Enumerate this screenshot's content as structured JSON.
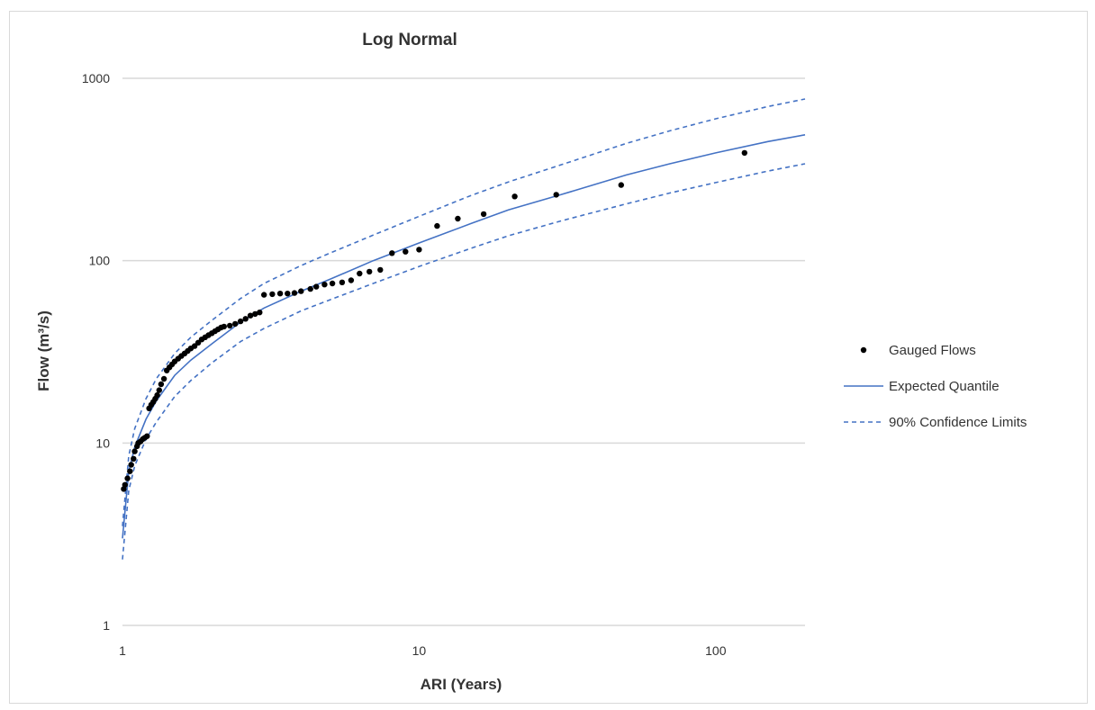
{
  "chart_data": {
    "type": "scatter",
    "title": "Log Normal",
    "xlabel": "ARI (Years)",
    "ylabel": "Flow (m³/s)",
    "xscale": "log",
    "yscale": "log",
    "xlim": [
      1,
      200
    ],
    "ylim": [
      1,
      1000
    ],
    "xticks": [
      "1",
      "10",
      "100"
    ],
    "yticks": [
      "1",
      "10",
      "100",
      "1000"
    ],
    "grid": "horizontal",
    "legend_position": "right",
    "colors": {
      "points": "#000000",
      "expected": "#4472c4",
      "confidence": "#4472c4",
      "grid": "#d9d9d9"
    },
    "series": [
      {
        "name": "Gauged Flows",
        "kind": "points",
        "points": [
          [
            1.01,
            5.6
          ],
          [
            1.02,
            5.9
          ],
          [
            1.04,
            6.4
          ],
          [
            1.06,
            7.0
          ],
          [
            1.07,
            7.6
          ],
          [
            1.09,
            8.2
          ],
          [
            1.1,
            9.0
          ],
          [
            1.12,
            9.6
          ],
          [
            1.13,
            10.0
          ],
          [
            1.15,
            10.2
          ],
          [
            1.17,
            10.5
          ],
          [
            1.19,
            10.7
          ],
          [
            1.21,
            10.9
          ],
          [
            1.23,
            15.5
          ],
          [
            1.25,
            16.2
          ],
          [
            1.27,
            16.8
          ],
          [
            1.29,
            17.5
          ],
          [
            1.31,
            18.3
          ],
          [
            1.33,
            19.5
          ],
          [
            1.35,
            21.0
          ],
          [
            1.38,
            22.5
          ],
          [
            1.41,
            25.0
          ],
          [
            1.44,
            26.0
          ],
          [
            1.47,
            27.0
          ],
          [
            1.5,
            28.0
          ],
          [
            1.54,
            29.0
          ],
          [
            1.58,
            30.0
          ],
          [
            1.62,
            31.0
          ],
          [
            1.66,
            32.0
          ],
          [
            1.7,
            33.0
          ],
          [
            1.75,
            34.0
          ],
          [
            1.8,
            35.5
          ],
          [
            1.85,
            37.0
          ],
          [
            1.9,
            38.0
          ],
          [
            1.95,
            39.0
          ],
          [
            2.0,
            40.0
          ],
          [
            2.05,
            41.0
          ],
          [
            2.1,
            42.0
          ],
          [
            2.15,
            43.0
          ],
          [
            2.2,
            43.5
          ],
          [
            2.3,
            44.0
          ],
          [
            2.4,
            45.0
          ],
          [
            2.5,
            46.5
          ],
          [
            2.6,
            48.0
          ],
          [
            2.7,
            50.0
          ],
          [
            2.8,
            51.0
          ],
          [
            2.9,
            52.0
          ],
          [
            3.0,
            65.0
          ],
          [
            3.2,
            65.5
          ],
          [
            3.4,
            66.0
          ],
          [
            3.6,
            66.0
          ],
          [
            3.8,
            66.5
          ],
          [
            4.0,
            68.0
          ],
          [
            4.3,
            70.0
          ],
          [
            4.5,
            72.0
          ],
          [
            4.8,
            74.0
          ],
          [
            5.1,
            75.0
          ],
          [
            5.5,
            76.0
          ],
          [
            5.9,
            78.0
          ],
          [
            6.3,
            85.0
          ],
          [
            6.8,
            87.0
          ],
          [
            7.4,
            89.0
          ],
          [
            8.1,
            110.0
          ],
          [
            9.0,
            112.0
          ],
          [
            10.0,
            115.0
          ],
          [
            11.5,
            155.0
          ],
          [
            13.5,
            170.0
          ],
          [
            16.5,
            180.0
          ],
          [
            21.0,
            225.0
          ],
          [
            29.0,
            230.0
          ],
          [
            48.0,
            260.0
          ],
          [
            125.0,
            390.0
          ]
        ]
      },
      {
        "name": "Expected Quantile",
        "kind": "line",
        "x": [
          1.0,
          1.05,
          1.1,
          1.2,
          1.3,
          1.5,
          1.7,
          2.0,
          2.5,
          3.0,
          4.0,
          5.0,
          7.0,
          10.0,
          15.0,
          20.0,
          30.0,
          50.0,
          70.0,
          100.0,
          150.0,
          200.0
        ],
        "y": [
          3.0,
          7.0,
          9.5,
          13.5,
          17.0,
          23.5,
          28.5,
          35.0,
          46.0,
          55.0,
          68.0,
          79.0,
          100.0,
          125.0,
          160.0,
          190.0,
          230.0,
          295.0,
          340.0,
          390.0,
          450.0,
          490.0
        ]
      },
      {
        "name": "90% Confidence Limits",
        "kind": "dashed",
        "x": [
          1.0,
          1.05,
          1.1,
          1.2,
          1.3,
          1.5,
          1.7,
          2.0,
          2.5,
          3.0,
          4.0,
          5.0,
          7.0,
          10.0,
          15.0,
          20.0,
          30.0,
          50.0,
          70.0,
          100.0,
          150.0,
          200.0
        ],
        "y": [
          3.5,
          8.5,
          12.0,
          17.5,
          22.5,
          31.0,
          38.0,
          47.0,
          62.0,
          75.0,
          94.0,
          110.0,
          138.0,
          175.0,
          228.0,
          270.0,
          335.0,
          440.0,
          515.0,
          600.0,
          700.0,
          770.0
        ]
      },
      {
        "name": "90% Confidence Limits (lower)",
        "kind": "dashed",
        "x": [
          1.0,
          1.05,
          1.1,
          1.2,
          1.3,
          1.5,
          1.7,
          2.0,
          2.5,
          3.0,
          4.0,
          5.0,
          7.0,
          10.0,
          15.0,
          20.0,
          30.0,
          50.0,
          70.0,
          100.0,
          150.0,
          200.0
        ],
        "y": [
          2.3,
          5.5,
          7.5,
          10.5,
          13.0,
          18.0,
          22.0,
          27.5,
          36.0,
          42.5,
          53.0,
          61.0,
          75.0,
          93.0,
          117.0,
          137.0,
          165.0,
          205.0,
          235.0,
          268.0,
          310.0,
          340.0
        ]
      }
    ],
    "legend": [
      {
        "label": "Gauged Flows",
        "kind": "points"
      },
      {
        "label": "Expected Quantile",
        "kind": "line"
      },
      {
        "label": "90% Confidence Limits",
        "kind": "dashed"
      }
    ]
  }
}
